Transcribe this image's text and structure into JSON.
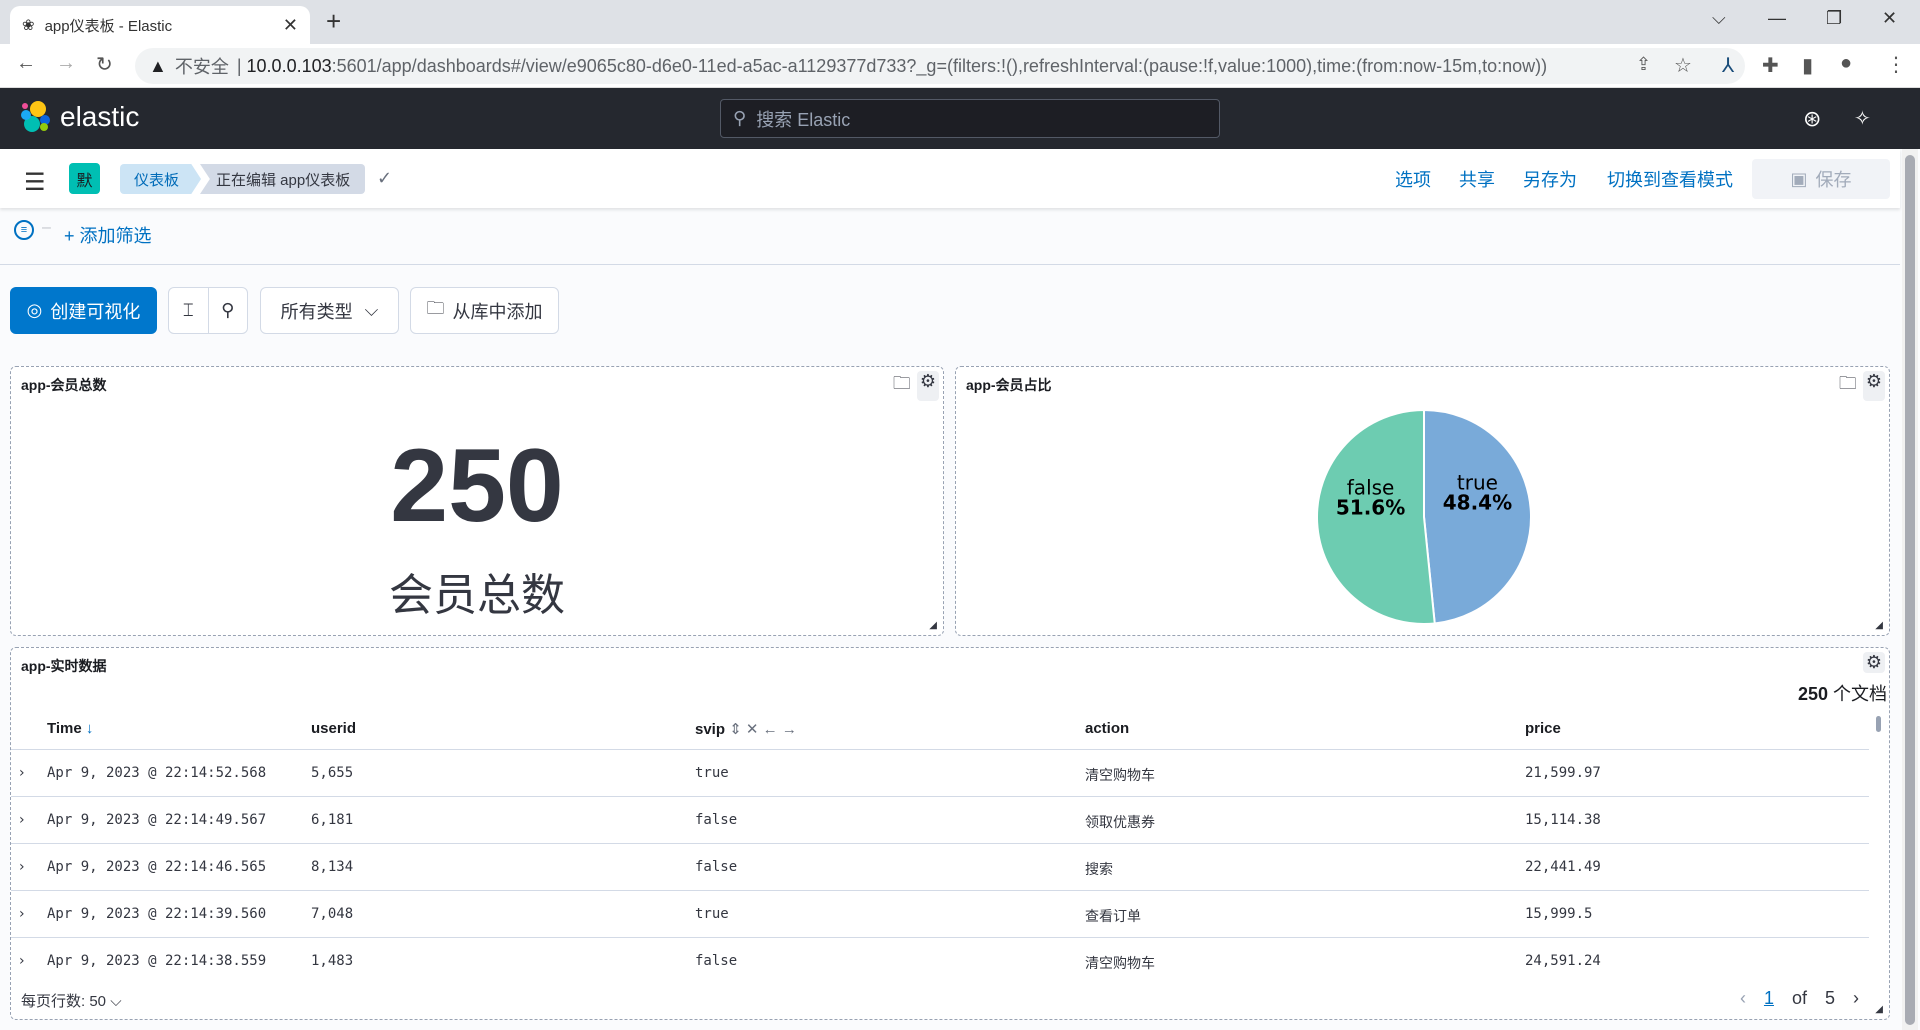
{
  "browser": {
    "tab_title": "app仪表板 - Elastic",
    "insecure_label": "不安全",
    "url_host": "10.0.0.103",
    "url_rest": ":5601/app/dashboards#/view/e9065c80-d6e0-11ed-a5ac-a1129377d733?_g=(filters:!(),refreshInterval:(pause:!f,value:1000),time:(from:now-15m,to:now))"
  },
  "header": {
    "brand": "elastic",
    "search_placeholder": "搜索 Elastic"
  },
  "nav": {
    "space_initial": "默",
    "breadcrumbs": [
      "仪表板",
      "正在编辑 app仪表板"
    ],
    "links": [
      "选项",
      "共享",
      "另存为",
      "切换到查看模式"
    ],
    "save_label": "保存"
  },
  "filter": {
    "add_filter": "+ 添加筛选"
  },
  "toolbar": {
    "create": "创建可视化",
    "all_types": "所有类型",
    "add_from_library": "从库中添加"
  },
  "panels": {
    "metric": {
      "title": "app-会员总数",
      "value": "250",
      "label": "会员总数"
    },
    "pie": {
      "title": "app-会员占比",
      "slices": [
        {
          "label": "true",
          "percent": 48.4,
          "display": "48.4%",
          "color": "#79aad9"
        },
        {
          "label": "false",
          "percent": 51.6,
          "display": "51.6%",
          "color": "#6dccb1"
        }
      ]
    },
    "table": {
      "title": "app-实时数据",
      "count": "250",
      "count_unit": "个文档",
      "columns": [
        "Time",
        "userid",
        "svip",
        "action",
        "price"
      ],
      "rows": [
        [
          "Apr 9, 2023 @ 22:14:52.568",
          "5,655",
          "true",
          "清空购物车",
          "21,599.97"
        ],
        [
          "Apr 9, 2023 @ 22:14:49.567",
          "6,181",
          "false",
          "领取优惠券",
          "15,114.38"
        ],
        [
          "Apr 9, 2023 @ 22:14:46.565",
          "8,134",
          "false",
          "搜索",
          "22,441.49"
        ],
        [
          "Apr 9, 2023 @ 22:14:39.560",
          "7,048",
          "true",
          "查看订单",
          "15,999.5"
        ],
        [
          "Apr 9, 2023 @ 22:14:38.559",
          "1,483",
          "false",
          "清空购物车",
          "24,591.24"
        ]
      ],
      "rows_per_page_label": "每页行数: 50",
      "page": "1",
      "of": "of",
      "total_pages": "5"
    }
  }
}
